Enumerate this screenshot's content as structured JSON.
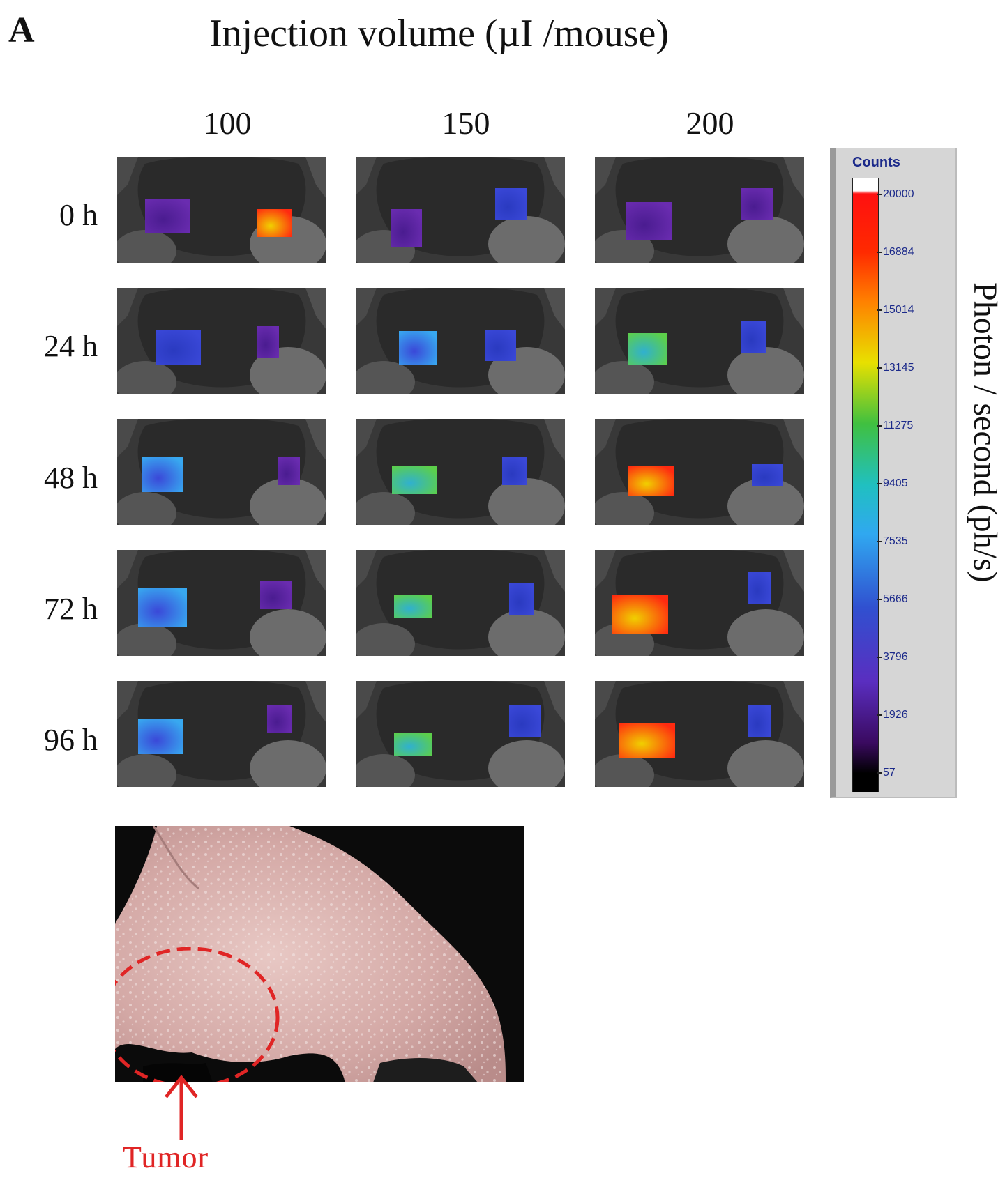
{
  "panel_letter": "A",
  "title": "Injection volume (µI /mouse)",
  "columns": [
    "100",
    "150",
    "200"
  ],
  "rows": [
    "0 h",
    "24 h",
    "48 h",
    "72 h",
    "96 h"
  ],
  "colorbar": {
    "title": "Counts",
    "ticks": [
      "20000",
      "16884",
      "15014",
      "13145",
      "11275",
      "9405",
      "7535",
      "5666",
      "3796",
      "1926",
      "57"
    ],
    "side_label": "Photon / second (ph/s)"
  },
  "photo": {
    "annotation_label": "Tumor",
    "circle_color": "#e02525"
  }
}
